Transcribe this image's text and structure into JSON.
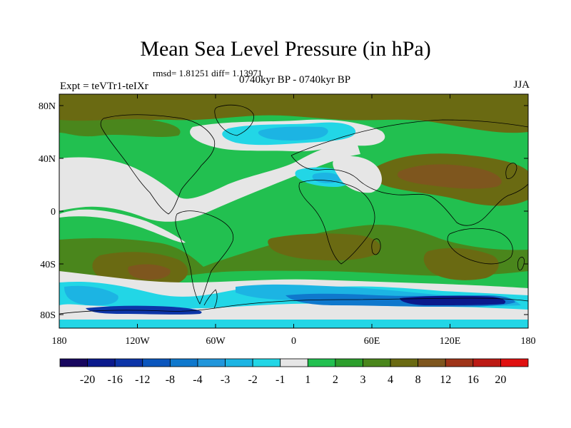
{
  "title": "Mean Sea Level Pressure (in hPa)",
  "stats": "rmsd= 1.81251  diff= 1.13971",
  "subtitle_left": "Expt = teVTr1-teIXr",
  "subtitle_center": "0740kyr BP - 0740kyr BP",
  "subtitle_right": "JJA",
  "map": {
    "lat_ticks": [
      "80N",
      "40N",
      "0",
      "40S",
      "80S"
    ],
    "lon_ticks": [
      "180",
      "120W",
      "60W",
      "0",
      "60E",
      "120E",
      "180"
    ]
  },
  "colorbar": {
    "labels": [
      "-20",
      "-16",
      "-12",
      "-8",
      "-4",
      "-3",
      "-2",
      "-1",
      "1",
      "2",
      "3",
      "4",
      "8",
      "12",
      "16",
      "20"
    ],
    "colors": [
      "#17065e",
      "#0b1a8c",
      "#0c35a8",
      "#0b56bd",
      "#0f78cd",
      "#2196db",
      "#1cb4e3",
      "#22d6e6",
      "#e6e6e6",
      "#22c050",
      "#2c9e2c",
      "#4a861c",
      "#6a6a12",
      "#7e561e",
      "#9e3418",
      "#bc1a14",
      "#e01010"
    ]
  },
  "colors": {
    "ocean_background": "#22c050",
    "land_outline": "#000000"
  }
}
